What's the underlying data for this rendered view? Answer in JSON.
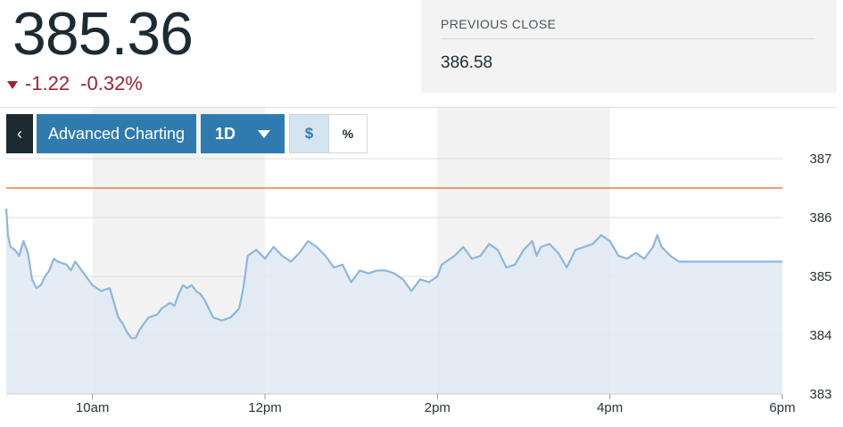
{
  "quote": {
    "price": "385.36",
    "change": "-1.22",
    "change_pct": "-0.32%",
    "direction_color": "#9e2331"
  },
  "previous_close": {
    "label": "PREVIOUS CLOSE",
    "value": "386.58"
  },
  "toolbar": {
    "back_label": "‹",
    "advanced_label": "Advanced Charting",
    "range_label": "1D",
    "dollar_label": "$",
    "percent_label": "%",
    "selected_mode": "$"
  },
  "colors": {
    "accent": "#2f7bb0",
    "line": "#8db7dc",
    "area": "#dfe9f3",
    "reference_line": "#ee7d3b"
  },
  "chart_data": {
    "type": "area",
    "ylim": [
      383,
      387
    ],
    "y_ticks": [
      "387",
      "386",
      "385",
      "384",
      "383"
    ],
    "x_ticks": [
      "10am",
      "12pm",
      "2pm",
      "4pm",
      "6pm"
    ],
    "x_tick_hours": [
      10,
      12,
      14,
      16,
      18
    ],
    "xlim_hours": [
      9.0,
      18.0
    ],
    "shaded_bands_hours": [
      [
        10,
        12
      ],
      [
        14,
        16
      ]
    ],
    "reference_value": 386.5,
    "grid": true,
    "series": [
      {
        "x_hours": [
          9.0,
          9.02,
          9.05,
          9.1,
          9.15,
          9.2,
          9.25,
          9.3,
          9.35,
          9.4,
          9.45,
          9.5,
          9.55,
          9.6,
          9.7,
          9.75,
          9.8,
          9.85,
          9.9,
          10.0,
          10.1,
          10.2,
          10.3,
          10.35,
          10.4,
          10.45,
          10.5,
          10.55,
          10.65,
          10.75,
          10.8,
          10.85,
          10.9,
          10.95,
          11.0,
          11.05,
          11.1,
          11.15,
          11.2,
          11.25,
          11.3,
          11.4,
          11.5,
          11.6,
          11.7,
          11.75,
          11.8,
          11.9,
          12.0,
          12.1,
          12.2,
          12.3,
          12.4,
          12.5,
          12.6,
          12.7,
          12.8,
          12.9,
          13.0,
          13.1,
          13.2,
          13.3,
          13.4,
          13.5,
          13.6,
          13.7,
          13.8,
          13.9,
          14.0,
          14.05,
          14.1,
          14.2,
          14.3,
          14.4,
          14.5,
          14.6,
          14.7,
          14.8,
          14.9,
          15.0,
          15.1,
          15.15,
          15.2,
          15.3,
          15.4,
          15.5,
          15.6,
          15.7,
          15.8,
          15.9,
          16.0,
          16.1,
          16.2,
          16.3,
          16.4,
          16.5,
          16.55,
          16.6,
          16.7,
          16.8,
          16.9,
          17.0,
          17.05,
          17.1,
          17.2,
          17.3,
          17.4,
          17.5,
          17.6,
          17.7,
          18.0
        ],
        "values": [
          386.15,
          385.7,
          385.5,
          385.45,
          385.35,
          385.6,
          385.4,
          384.95,
          384.8,
          384.85,
          385.0,
          385.1,
          385.3,
          385.25,
          385.2,
          385.1,
          385.25,
          385.15,
          385.05,
          384.85,
          384.75,
          384.8,
          384.3,
          384.2,
          384.05,
          383.95,
          383.95,
          384.1,
          384.3,
          384.35,
          384.45,
          384.5,
          384.55,
          384.5,
          384.7,
          384.85,
          384.8,
          384.85,
          384.75,
          384.7,
          384.6,
          384.3,
          384.25,
          384.3,
          384.45,
          384.8,
          385.35,
          385.45,
          385.3,
          385.5,
          385.35,
          385.25,
          385.4,
          385.6,
          385.5,
          385.35,
          385.15,
          385.2,
          384.9,
          385.1,
          385.05,
          385.1,
          385.1,
          385.05,
          384.95,
          384.75,
          384.95,
          384.9,
          385.0,
          385.2,
          385.25,
          385.35,
          385.5,
          385.3,
          385.35,
          385.55,
          385.45,
          385.15,
          385.2,
          385.45,
          385.6,
          385.35,
          385.5,
          385.55,
          385.4,
          385.15,
          385.45,
          385.5,
          385.55,
          385.7,
          385.6,
          385.35,
          385.3,
          385.4,
          385.3,
          385.5,
          385.7,
          385.5,
          385.35,
          385.25,
          385.25,
          385.25,
          385.25,
          385.25,
          385.25,
          385.25,
          385.25,
          385.25,
          385.25,
          385.25,
          385.25
        ]
      }
    ]
  }
}
